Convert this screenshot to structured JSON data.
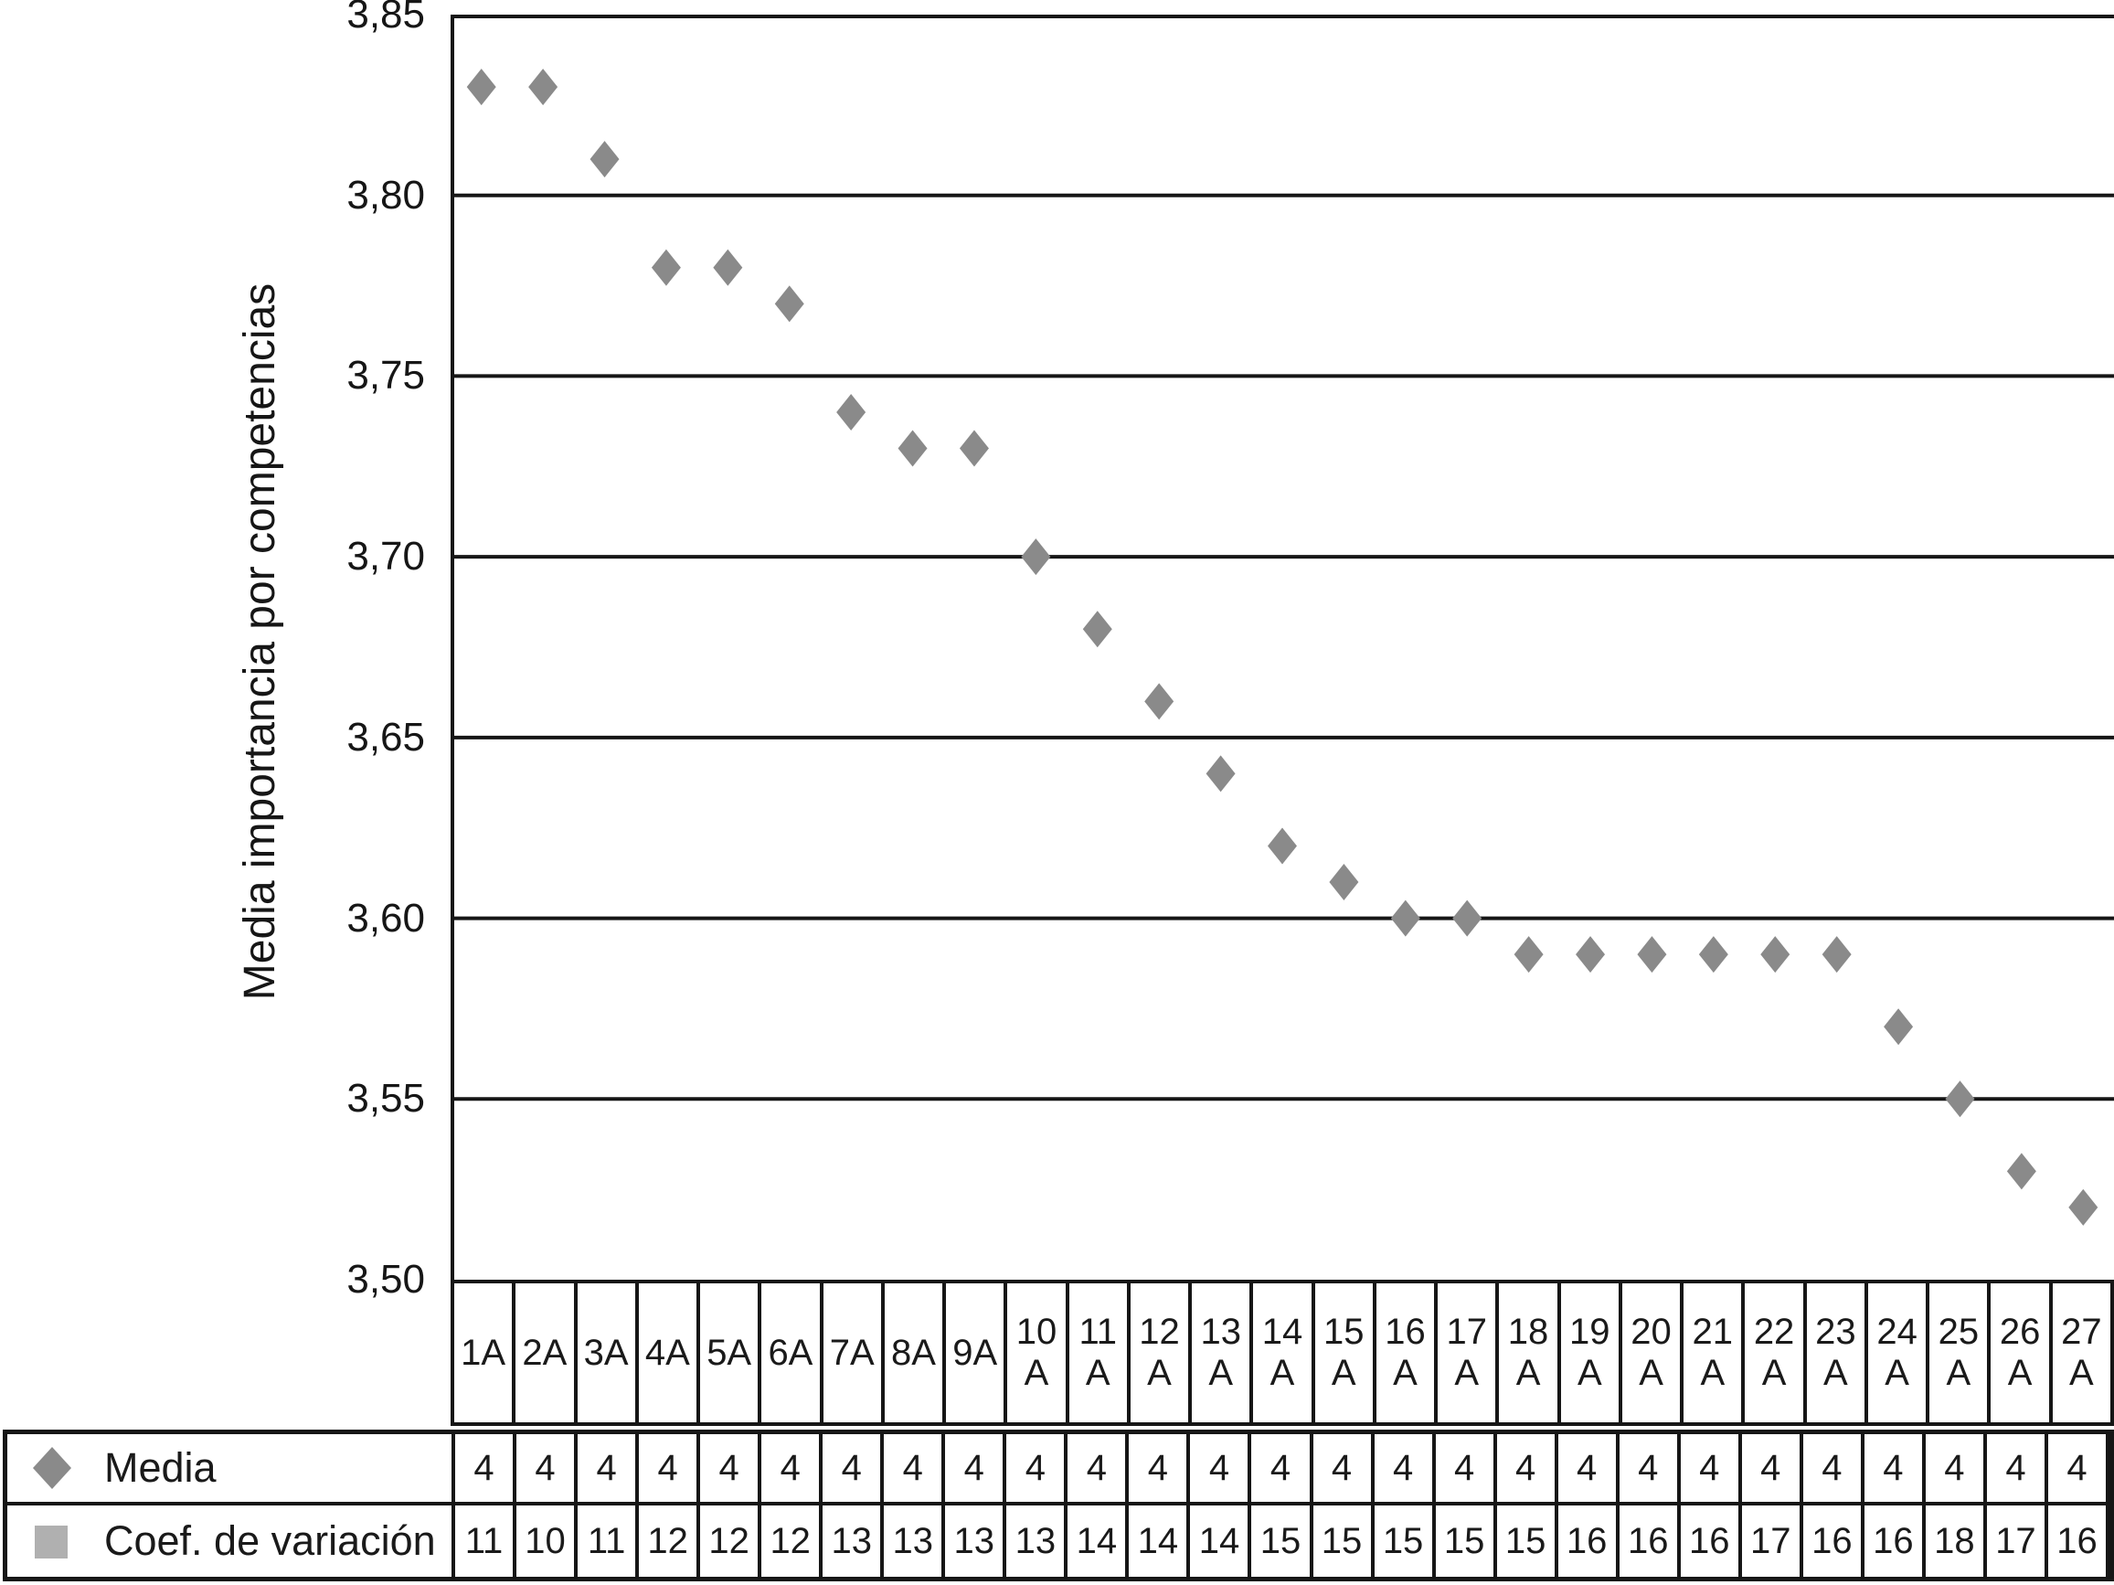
{
  "chart": {
    "y_axis": {
      "title": "Media importancia por competencias",
      "ticks": [
        {
          "label": "3,85",
          "value": 3.85
        },
        {
          "label": "3,80",
          "value": 3.8
        },
        {
          "label": "3,75",
          "value": 3.75
        },
        {
          "label": "3,70",
          "value": 3.7
        },
        {
          "label": "3,65",
          "value": 3.65
        },
        {
          "label": "3,60",
          "value": 3.6
        },
        {
          "label": "3,55",
          "value": 3.55
        },
        {
          "label": "3,50",
          "value": 3.5
        }
      ]
    }
  },
  "chart_data": {
    "type": "scatter",
    "title": "",
    "xlabel": "",
    "ylabel": "Media importancia por competencias",
    "ylim": [
      3.5,
      3.85
    ],
    "ytick_step": 0.05,
    "grid": "horizontal",
    "legend_position": "table-left",
    "decimal_separator": ",",
    "categories": [
      "1A",
      "2A",
      "3A",
      "4A",
      "5A",
      "6A",
      "7A",
      "8A",
      "9A",
      "10A",
      "11A",
      "12A",
      "13A",
      "14A",
      "15A",
      "16A",
      "17A",
      "18A",
      "19A",
      "20A",
      "21A",
      "22A",
      "23A",
      "24A",
      "25A",
      "26A",
      "27A"
    ],
    "series": [
      {
        "name": "Media",
        "marker": "diamond",
        "values": [
          3.83,
          3.83,
          3.81,
          3.78,
          3.78,
          3.77,
          3.74,
          3.73,
          3.73,
          3.7,
          3.68,
          3.66,
          3.64,
          3.62,
          3.61,
          3.6,
          3.6,
          3.59,
          3.59,
          3.59,
          3.59,
          3.59,
          3.59,
          3.57,
          3.55,
          3.53,
          3.52
        ]
      }
    ]
  },
  "table": {
    "rows": [
      {
        "label": "Media",
        "marker": "diamond-icon",
        "marker_color": "#8a8a8a",
        "values": [
          "4",
          "4",
          "4",
          "4",
          "4",
          "4",
          "4",
          "4",
          "4",
          "4",
          "4",
          "4",
          "4",
          "4",
          "4",
          "4",
          "4",
          "4",
          "4",
          "4",
          "4",
          "4",
          "4",
          "4",
          "4",
          "4",
          "4"
        ]
      },
      {
        "label": "Coef. de variación",
        "marker": "square-icon",
        "marker_color": "#b0b0b0",
        "values": [
          "11",
          "10",
          "11",
          "12",
          "12",
          "12",
          "13",
          "13",
          "13",
          "13",
          "14",
          "14",
          "14",
          "15",
          "15",
          "15",
          "15",
          "15",
          "16",
          "16",
          "16",
          "17",
          "16",
          "16",
          "18",
          "17",
          "16"
        ]
      }
    ]
  },
  "colors": {
    "marker": "#8a8a8a",
    "legend_square": "#b0b0b0",
    "line": "#161616",
    "text": "#1a1a1a",
    "background": "#ffffff"
  }
}
